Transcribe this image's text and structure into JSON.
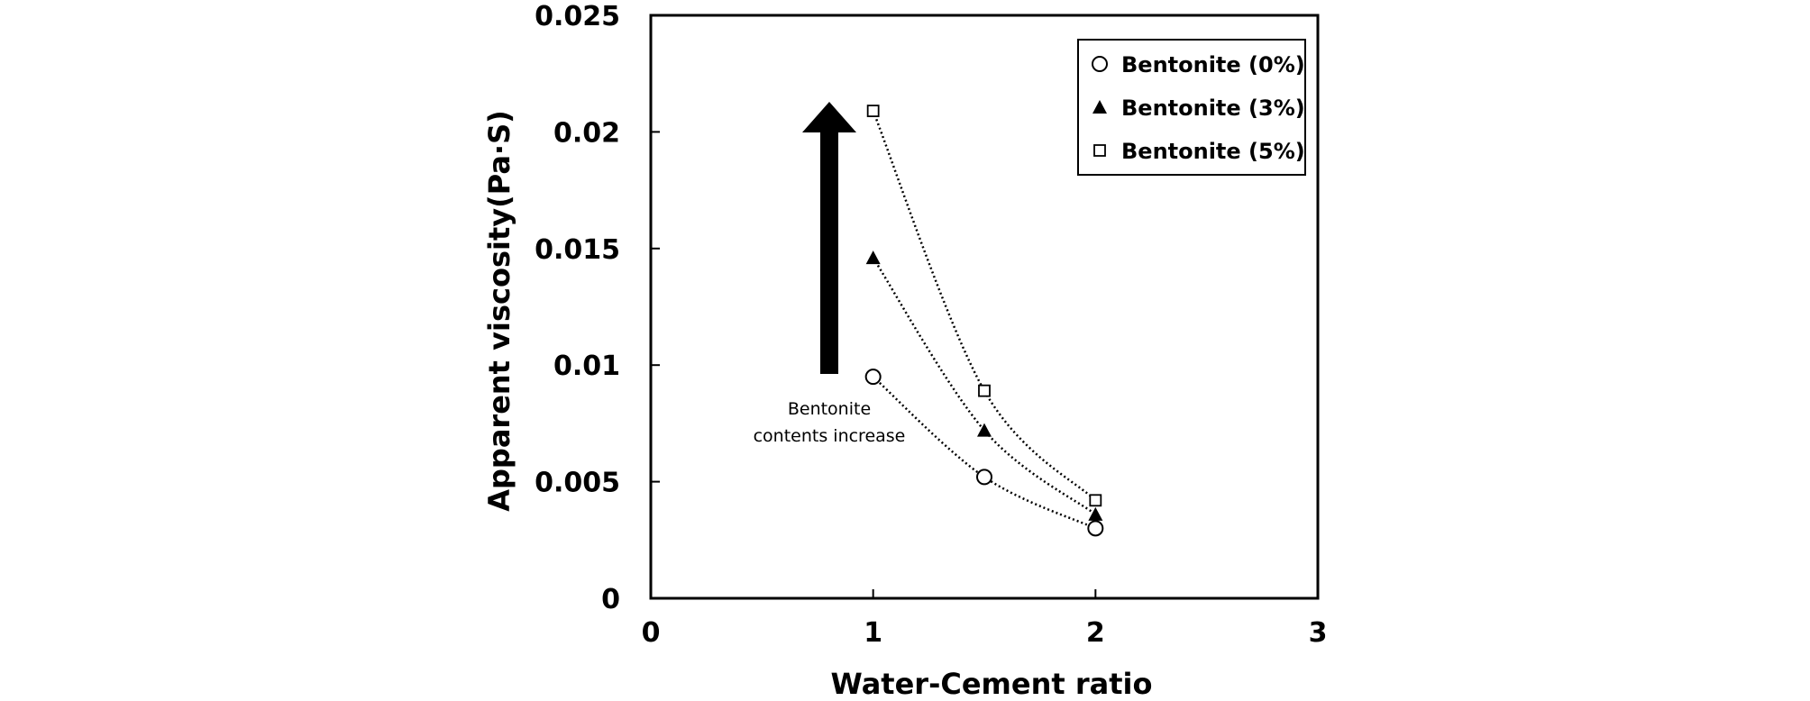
{
  "chart_data": {
    "type": "scatter",
    "xlabel": "Water-Cement ratio",
    "ylabel": "Apparent viscosity(Pa·S)",
    "xlim": [
      0,
      3
    ],
    "ylim": [
      0,
      0.025
    ],
    "x_ticks": [
      "0",
      "1",
      "2",
      "3"
    ],
    "y_ticks": [
      "0",
      "0.005",
      "0.01",
      "0.015",
      "0.02",
      "0.025"
    ],
    "grid": false,
    "legend_position": "top-right",
    "trendline_style": "dotted",
    "series": [
      {
        "name": "Bentonite (0%)",
        "marker": "open-circle",
        "x": [
          1,
          1.5,
          2
        ],
        "y": [
          0.0095,
          0.0052,
          0.003
        ]
      },
      {
        "name": "Bentonite (3%)",
        "marker": "filled-triangle",
        "x": [
          1,
          1.5,
          2
        ],
        "y": [
          0.0146,
          0.0072,
          0.0036
        ]
      },
      {
        "name": "Bentonite (5%)",
        "marker": "open-square",
        "x": [
          1,
          1.5,
          2
        ],
        "y": [
          0.0209,
          0.0089,
          0.0042
        ]
      }
    ],
    "annotation": {
      "lines": [
        "Bentonite",
        "contents increase"
      ],
      "arrow_direction": "up",
      "arrow_color": "#000000"
    }
  }
}
